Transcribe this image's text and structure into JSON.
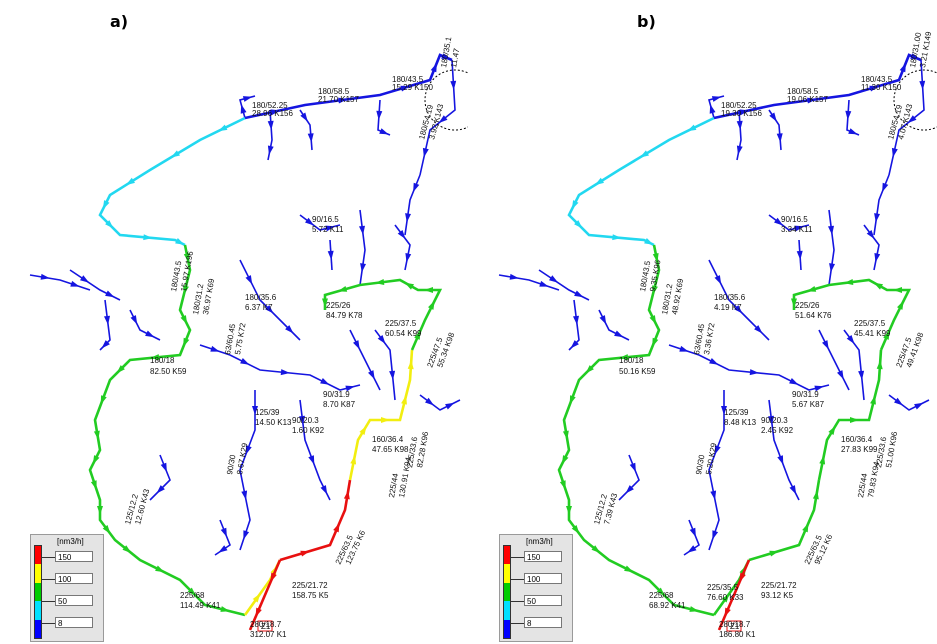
{
  "colors": {
    "gray": "#111111",
    "blue": "#1515e0",
    "cyan": "#22d8f0",
    "green": "#22cc22",
    "yellow": "#f2ee10",
    "red": "#e81010",
    "legend_bar": [
      "#ff0000",
      "#ffff00",
      "#00cc00",
      "#00e0ff",
      "#0000ff"
    ]
  },
  "legend": {
    "unit": "[nm3/h]",
    "values": [
      "150",
      "100",
      "50",
      "8"
    ]
  },
  "panels": [
    {
      "label": "a)",
      "segment_colors": {
        "main_upper": "cyan",
        "main_left": "green",
        "bottom": "yellow",
        "bottom_right": "red",
        "right_vertical": "yellow",
        "right_loop": "green",
        "inlet": "red",
        "top_right": "blue"
      },
      "pipe_labels": [
        "180/52.25",
        "28.96 K156",
        "180/58.5",
        "21.70 K157",
        "180/43.5",
        "15.29 K150",
        "180/35.1",
        "11.47",
        "180/54.19",
        "3.92 K143",
        "90/16.5",
        "5.72 K11",
        "180/43.5",
        "15.97 K196",
        "180/31.2",
        "36.97 K69",
        "180/35.6",
        "6.37 K7",
        "225/26",
        "84.79 K78",
        "225/37.5",
        "60.54 K99",
        "225/47.5",
        "55.34 K98",
        "63/60.45",
        "5.75 K72",
        "180/18",
        "82.50 K59",
        "90/31.9",
        "8.70 K87",
        "125/39",
        "14.50 K13",
        "90/20.3",
        "1.60 K92",
        "160/36.4",
        "47.65 K98",
        "225/33.6",
        "82.28 K96",
        "225/44",
        "130.91 K94",
        "125/12.2",
        "12.60 K43",
        "90/30",
        "8.67 K29",
        "225/68",
        "114.49 K41",
        "225/63.5",
        "123.75 K6",
        "225/21.72",
        "158.75 K5",
        "280/18.7",
        "312.07 K1",
        "Z1"
      ]
    },
    {
      "label": "b)",
      "segment_colors": {
        "main_upper": "cyan",
        "main_left": "green",
        "bottom": "green",
        "bottom_right": "green",
        "right_vertical": "green",
        "right_loop": "green",
        "inlet": "red",
        "top_right": "blue"
      },
      "pipe_labels": [
        "180/52.25",
        "19.30 K156",
        "180/58.5",
        "19.06 K157",
        "180/43.5",
        "11.30 K150",
        "180/31.00",
        "3.21 K149",
        "180/54.19",
        "4.07 K143",
        "90/16.5",
        "3.34 K11",
        "180/43.5",
        "9.35 K96",
        "180/31.2",
        "48.92 K69",
        "180/35.6",
        "4.19 K7",
        "225/26",
        "51.64 K76",
        "225/37.5",
        "45.41 K99",
        "225/47.5",
        "49.41 K98",
        "63/60.45",
        "3.36 K72",
        "180/18",
        "50.16 K59",
        "90/31.9",
        "5.67 K87",
        "125/39",
        "8.48 K13",
        "90/20.3",
        "2.45 K92",
        "160/36.4",
        "27.83 K99",
        "225/33.6",
        "51.00 K96",
        "225/44",
        "79.83 K94",
        "125/12.2",
        "7.39 K43",
        "90/30",
        "5.20 K29",
        "225/68",
        "68.92 K41",
        "225/63.5",
        "95.12 K6",
        "225/21.72",
        "93.12 K5",
        "225/35.5",
        "76.60 K33",
        "280/18.7",
        "186.80 K1",
        "Z1"
      ]
    }
  ]
}
